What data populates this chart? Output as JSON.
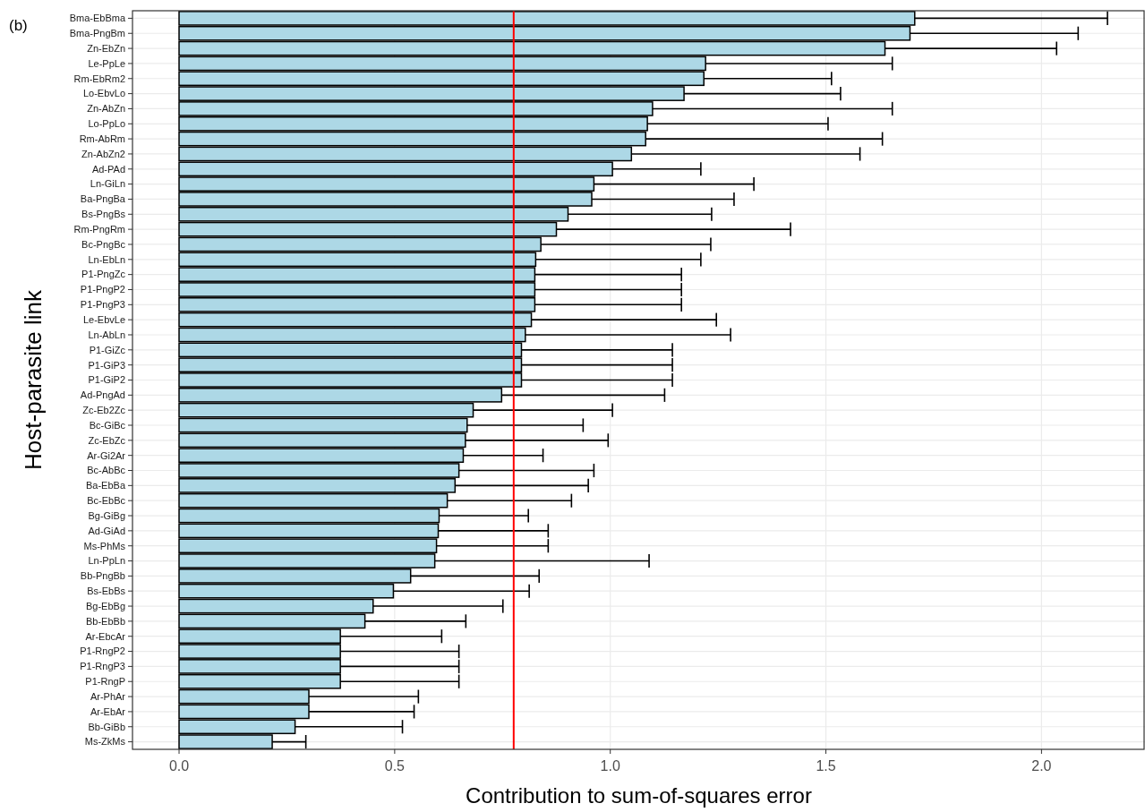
{
  "chart_data": {
    "type": "bar",
    "orientation": "horizontal",
    "xlabel": "Contribution to sum-of-squares error",
    "ylabel": "Host-parasite link",
    "annotations": [
      "(b)"
    ],
    "categories": [
      "Bma-EbBma",
      "Bma-PngBm",
      "Zn-EbZn",
      "Le-PpLe",
      "Rm-EbRm2",
      "Lo-EbvLo",
      "Zn-AbZn",
      "Lo-PpLo",
      "Rm-AbRm",
      "Zn-AbZn2",
      "Ad-PAd",
      "Ln-GiLn",
      "Ba-PngBa",
      "Bs-PngBs",
      "Rm-PngRm",
      "Bc-PngBc",
      "Ln-EbLn",
      "P1-PngZc",
      "P1-PngP2",
      "P1-PngP3",
      "Le-EbvLe",
      "Ln-AbLn",
      "P1-GiZc",
      "P1-GiP3",
      "P1-GiP2",
      "Ad-PngAd",
      "Zc-Eb2Zc",
      "Bc-GiBc",
      "Zc-EbZc",
      "Ar-Gi2Ar",
      "Bc-AbBc",
      "Ba-EbBa",
      "Bc-EbBc",
      "Bg-GiBg",
      "Ad-GiAd",
      "Ms-PhMs",
      "Ln-PpLn",
      "Bb-PngBb",
      "Bs-EbBs",
      "Bg-EbBg",
      "Bb-EbBb",
      "Ar-EbcAr",
      "P1-RngP2",
      "P1-RngP3",
      "P1-RngP",
      "Ar-PhAr",
      "Ar-EbAr",
      "Bb-GiBb",
      "Ms-ZkMs"
    ],
    "values": [
      1.706,
      1.695,
      1.637,
      1.221,
      1.217,
      1.171,
      1.098,
      1.086,
      1.082,
      1.049,
      1.005,
      0.962,
      0.957,
      0.902,
      0.875,
      0.839,
      0.827,
      0.825,
      0.825,
      0.825,
      0.817,
      0.803,
      0.794,
      0.794,
      0.794,
      0.748,
      0.682,
      0.668,
      0.664,
      0.659,
      0.649,
      0.64,
      0.622,
      0.603,
      0.601,
      0.597,
      0.593,
      0.537,
      0.497,
      0.45,
      0.431,
      0.374,
      0.374,
      0.374,
      0.374,
      0.301,
      0.301,
      0.269,
      0.216
    ],
    "errors": [
      [
        1.706,
        2.153
      ],
      [
        1.695,
        2.085
      ],
      [
        1.637,
        2.035
      ],
      [
        1.221,
        1.654
      ],
      [
        1.217,
        1.513
      ],
      [
        1.171,
        1.534
      ],
      [
        1.098,
        1.654
      ],
      [
        1.086,
        1.505
      ],
      [
        1.082,
        1.631
      ],
      [
        1.049,
        1.579
      ],
      [
        1.005,
        1.21
      ],
      [
        0.962,
        1.333
      ],
      [
        0.957,
        1.287
      ],
      [
        0.902,
        1.235
      ],
      [
        0.875,
        1.418
      ],
      [
        0.839,
        1.233
      ],
      [
        0.827,
        1.21
      ],
      [
        0.825,
        1.165
      ],
      [
        0.825,
        1.165
      ],
      [
        0.825,
        1.165
      ],
      [
        0.817,
        1.246
      ],
      [
        0.803,
        1.279
      ],
      [
        0.794,
        1.144
      ],
      [
        0.794,
        1.144
      ],
      [
        0.794,
        1.144
      ],
      [
        0.748,
        1.126
      ],
      [
        0.682,
        1.005
      ],
      [
        0.668,
        0.937
      ],
      [
        0.664,
        0.995
      ],
      [
        0.659,
        0.844
      ],
      [
        0.649,
        0.962
      ],
      [
        0.64,
        0.949
      ],
      [
        0.622,
        0.91
      ],
      [
        0.603,
        0.81
      ],
      [
        0.601,
        0.856
      ],
      [
        0.597,
        0.856
      ],
      [
        0.593,
        1.09
      ],
      [
        0.537,
        0.835
      ],
      [
        0.497,
        0.812
      ],
      [
        0.45,
        0.751
      ],
      [
        0.431,
        0.665
      ],
      [
        0.374,
        0.609
      ],
      [
        0.374,
        0.649
      ],
      [
        0.374,
        0.649
      ],
      [
        0.374,
        0.649
      ],
      [
        0.301,
        0.555
      ],
      [
        0.301,
        0.545
      ],
      [
        0.269,
        0.518
      ],
      [
        0.216,
        0.294
      ]
    ],
    "color": "#add8e6",
    "xlim": [
      -0.108,
      2.24
    ],
    "xticks": [
      {
        "value": 0,
        "label": "0.0"
      },
      0.5,
      {
        "value": 1,
        "label": "1.0"
      },
      1.5,
      {
        "value": 2,
        "label": "2.0"
      }
    ],
    "ref_lines": [
      {
        "axis": "x",
        "value": 0.776,
        "color": "#ff0000"
      }
    ],
    "grid": true
  }
}
